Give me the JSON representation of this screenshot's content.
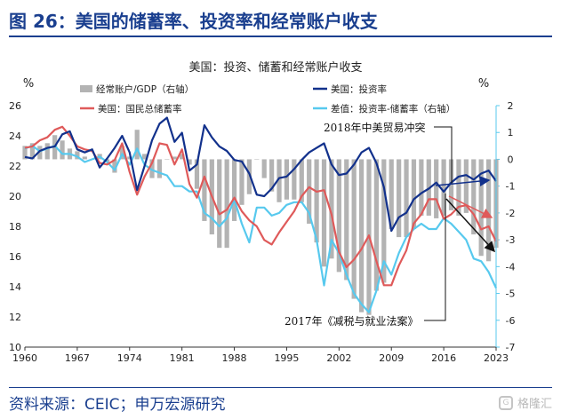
{
  "header": {
    "title": "图 26：美国的储蓄率、投资率和经常账户收支"
  },
  "footer": {
    "source": "资料来源：CEIC；申万宏源研究",
    "watermark": "格隆汇"
  },
  "chart_data": {
    "type": "line",
    "title": "美国：投资、储蓄和经常账户收支",
    "left_unit": "%",
    "right_unit": "%",
    "y_left": {
      "min": 10,
      "max": 26,
      "ticks": [
        10,
        12,
        14,
        16,
        18,
        20,
        22,
        24,
        26
      ]
    },
    "y_right": {
      "min": -7,
      "max": 2,
      "ticks": [
        -7,
        -6,
        -5,
        -4,
        -3,
        -2,
        -1,
        0,
        1,
        2
      ]
    },
    "x_tick_labels": [
      "1960",
      "1967",
      "1974",
      "1981",
      "1988",
      "1995",
      "2002",
      "2009",
      "2016",
      "2023"
    ],
    "x": [
      1960,
      1961,
      1962,
      1963,
      1964,
      1965,
      1966,
      1967,
      1968,
      1969,
      1970,
      1971,
      1972,
      1973,
      1974,
      1975,
      1976,
      1977,
      1978,
      1979,
      1980,
      1981,
      1982,
      1983,
      1984,
      1985,
      1986,
      1987,
      1988,
      1989,
      1990,
      1991,
      1992,
      1993,
      1994,
      1995,
      1996,
      1997,
      1998,
      1999,
      2000,
      2001,
      2002,
      2003,
      2004,
      2005,
      2006,
      2007,
      2008,
      2009,
      2010,
      2011,
      2012,
      2013,
      2014,
      2015,
      2016,
      2017,
      2018,
      2019,
      2020,
      2021,
      2022,
      2023
    ],
    "series": [
      {
        "name": "经常账户/GDP（右轴）",
        "kind": "bar",
        "axis": "right",
        "color": "#b3b3b3",
        "values": [
          0.5,
          0.6,
          0.5,
          0.6,
          0.9,
          0.7,
          0.4,
          0.3,
          0.1,
          0.0,
          0.2,
          -0.1,
          -0.5,
          0.5,
          0.1,
          1.1,
          0.2,
          -0.7,
          -0.7,
          0.0,
          0.1,
          0.2,
          -0.2,
          -1.1,
          -2.3,
          -2.8,
          -3.3,
          -3.3,
          -2.3,
          -1.7,
          -1.3,
          0.0,
          -0.7,
          -1.2,
          -1.6,
          -1.5,
          -1.5,
          -1.6,
          -2.4,
          -3.1,
          -4.0,
          -3.7,
          -4.2,
          -4.5,
          -5.2,
          -5.7,
          -5.8,
          -4.9,
          -4.6,
          -2.6,
          -2.9,
          -2.9,
          -2.6,
          -2.1,
          -2.1,
          -2.2,
          -2.1,
          -1.9,
          -2.1,
          -2.0,
          -2.8,
          -3.6,
          -3.8,
          -3.3
        ]
      },
      {
        "name": "美国：投资率",
        "kind": "line",
        "axis": "left",
        "color": "#12318c",
        "values": [
          22.6,
          22.5,
          23.0,
          23.2,
          23.3,
          24.1,
          24.3,
          23.1,
          22.9,
          23.1,
          21.9,
          22.5,
          23.2,
          24.0,
          22.9,
          20.4,
          22.0,
          23.7,
          24.8,
          25.2,
          23.6,
          24.2,
          21.7,
          22.1,
          24.7,
          23.9,
          23.3,
          23.0,
          22.4,
          22.3,
          21.5,
          20.1,
          20.0,
          20.5,
          21.2,
          21.3,
          21.8,
          22.4,
          22.9,
          23.2,
          23.5,
          22.1,
          21.4,
          21.5,
          22.1,
          22.9,
          23.2,
          22.2,
          20.6,
          17.7,
          18.6,
          18.9,
          19.8,
          20.2,
          20.5,
          20.9,
          20.3,
          20.9,
          21.3,
          21.4,
          21.1,
          21.5,
          21.7,
          21.0
        ]
      },
      {
        "name": "美国：国民总储蓄率",
        "kind": "line",
        "axis": "left",
        "color": "#df5a5a",
        "values": [
          23.2,
          23.3,
          23.7,
          23.9,
          24.4,
          24.6,
          24.0,
          23.3,
          23.1,
          23.0,
          22.2,
          22.1,
          22.4,
          23.5,
          21.6,
          20.1,
          21.3,
          22.2,
          23.5,
          23.4,
          22.1,
          23.1,
          20.8,
          19.9,
          21.3,
          20.0,
          18.8,
          19.1,
          19.9,
          19.0,
          18.4,
          18.0,
          17.1,
          16.8,
          17.6,
          18.3,
          19.0,
          20.0,
          20.6,
          20.3,
          20.4,
          18.8,
          16.3,
          15.3,
          15.8,
          16.5,
          17.4,
          15.7,
          14.1,
          14.1,
          15.4,
          16.4,
          18.2,
          18.8,
          19.8,
          19.8,
          18.5,
          18.8,
          19.3,
          19.4,
          18.8,
          17.8,
          18.0,
          17.0
        ]
      },
      {
        "name": "差值：投资率-储蓄率（右轴）",
        "kind": "line",
        "axis": "right",
        "color": "#57c9ee",
        "values": [
          0.4,
          0.5,
          0.3,
          0.4,
          0.5,
          0.2,
          0.2,
          0.1,
          -0.1,
          0.0,
          0.1,
          -0.1,
          -0.4,
          0.2,
          -0.2,
          0.4,
          -0.2,
          -0.4,
          -0.5,
          -0.6,
          -1.0,
          -1.0,
          -1.2,
          -1.2,
          -2.0,
          -2.2,
          -2.5,
          -2.2,
          -1.5,
          -2.4,
          -3.1,
          -1.8,
          -1.8,
          -2.1,
          -2.0,
          -1.7,
          -1.6,
          -1.6,
          -2.0,
          -3.0,
          -4.7,
          -3.0,
          -3.5,
          -4.3,
          -5.0,
          -5.4,
          -5.7,
          -4.9,
          -3.8,
          -4.3,
          -3.5,
          -2.9,
          -2.6,
          -2.4,
          -2.6,
          -2.6,
          -2.2,
          -2.4,
          -2.7,
          -3.0,
          -3.7,
          -3.8,
          -4.2,
          -4.8
        ]
      }
    ],
    "annotations": [
      {
        "text": "2018年中美贸易冲突",
        "year": 2018
      },
      {
        "text": "2017年《减税与就业法案》",
        "year": 2017
      }
    ]
  }
}
